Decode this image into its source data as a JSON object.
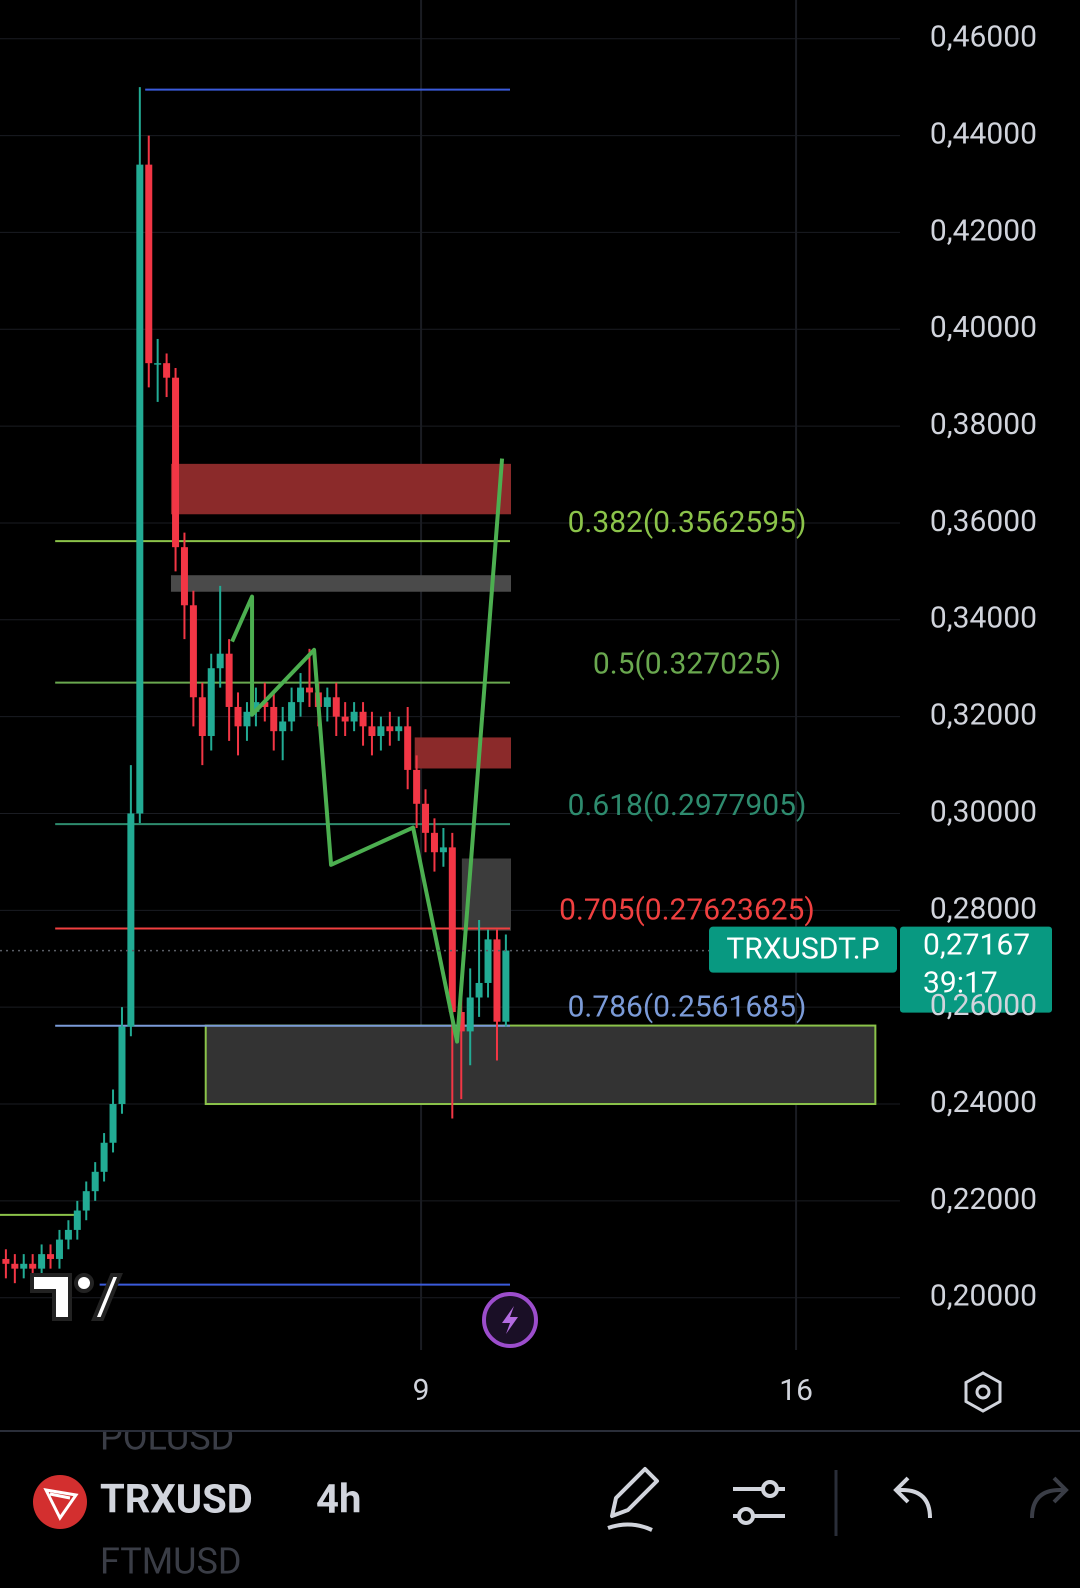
{
  "chart_data": {
    "type": "candlestick",
    "x": [
      1.25,
      1.417,
      1.583,
      1.75,
      1.917,
      2.083,
      2.25,
      2.417,
      2.583,
      2.75,
      2.917,
      3.083,
      3.25,
      3.417,
      3.583,
      3.75,
      3.917,
      4.083,
      4.25,
      4.417,
      4.583,
      4.75,
      4.917,
      5.083,
      5.25,
      5.417,
      5.583,
      5.75,
      5.917,
      6.083,
      6.25,
      6.417,
      6.583,
      6.75,
      6.917,
      7.083,
      7.25,
      7.417,
      7.583,
      7.75,
      7.917,
      8.083,
      8.25,
      8.417,
      8.583,
      8.75,
      8.917,
      9.083,
      9.25,
      9.417,
      9.583,
      9.75,
      9.917,
      10.083,
      10.25,
      10.417,
      10.583
    ],
    "open": [
      0.208,
      0.207,
      0.206,
      0.207,
      0.206,
      0.209,
      0.208,
      0.212,
      0.214,
      0.218,
      0.222,
      0.226,
      0.232,
      0.24,
      0.256,
      0.3,
      0.434,
      0.393,
      0.393,
      0.39,
      0.355,
      0.343,
      0.324,
      0.316,
      0.33,
      0.333,
      0.322,
      0.318,
      0.321,
      0.323,
      0.322,
      0.317,
      0.319,
      0.323,
      0.326,
      0.325,
      0.322,
      0.324,
      0.32,
      0.319,
      0.321,
      0.318,
      0.316,
      0.318,
      0.317,
      0.318,
      0.309,
      0.302,
      0.296,
      0.292,
      0.293,
      0.259,
      0.255,
      0.262,
      0.265,
      0.274,
      0.257
    ],
    "high": [
      0.21,
      0.209,
      0.209,
      0.209,
      0.211,
      0.211,
      0.214,
      0.216,
      0.22,
      0.224,
      0.228,
      0.234,
      0.243,
      0.26,
      0.31,
      0.45,
      0.44,
      0.398,
      0.395,
      0.392,
      0.358,
      0.346,
      0.327,
      0.333,
      0.347,
      0.336,
      0.325,
      0.323,
      0.326,
      0.327,
      0.325,
      0.322,
      0.326,
      0.329,
      0.334,
      0.327,
      0.326,
      0.327,
      0.323,
      0.323,
      0.323,
      0.321,
      0.32,
      0.321,
      0.32,
      0.322,
      0.312,
      0.305,
      0.299,
      0.297,
      0.296,
      0.262,
      0.268,
      0.278,
      0.276,
      0.276,
      0.275
    ],
    "low": [
      0.204,
      0.203,
      0.204,
      0.203,
      0.204,
      0.206,
      0.206,
      0.21,
      0.212,
      0.216,
      0.22,
      0.224,
      0.23,
      0.238,
      0.254,
      0.298,
      0.388,
      0.385,
      0.386,
      0.35,
      0.336,
      0.318,
      0.31,
      0.313,
      0.326,
      0.315,
      0.312,
      0.315,
      0.318,
      0.319,
      0.313,
      0.311,
      0.317,
      0.32,
      0.322,
      0.318,
      0.319,
      0.316,
      0.316,
      0.317,
      0.314,
      0.312,
      0.313,
      0.314,
      0.315,
      0.305,
      0.297,
      0.292,
      0.288,
      0.289,
      0.237,
      0.241,
      0.248,
      0.258,
      0.262,
      0.249,
      0.256
    ],
    "close": [
      0.207,
      0.206,
      0.207,
      0.206,
      0.209,
      0.208,
      0.212,
      0.214,
      0.218,
      0.222,
      0.226,
      0.232,
      0.24,
      0.256,
      0.3,
      0.434,
      0.393,
      0.393,
      0.39,
      0.355,
      0.343,
      0.324,
      0.316,
      0.33,
      0.333,
      0.322,
      0.318,
      0.321,
      0.323,
      0.322,
      0.317,
      0.319,
      0.323,
      0.326,
      0.325,
      0.322,
      0.324,
      0.32,
      0.319,
      0.321,
      0.318,
      0.316,
      0.318,
      0.317,
      0.318,
      0.309,
      0.302,
      0.296,
      0.292,
      0.293,
      0.259,
      0.255,
      0.262,
      0.265,
      0.274,
      0.257,
      0.2717
    ],
    "up_color": "#22ab94",
    "down_color": "#f23645",
    "xlim": [
      1.14,
      17.94
    ],
    "xticks": [
      9,
      16
    ],
    "ylim": [
      0.1892,
      0.468
    ],
    "yticks": [
      {
        "value": 0.46,
        "label": "0,46000"
      },
      {
        "value": 0.44,
        "label": "0,44000"
      },
      {
        "value": 0.42,
        "label": "0,42000"
      },
      {
        "value": 0.4,
        "label": "0,40000"
      },
      {
        "value": 0.38,
        "label": "0,38000"
      },
      {
        "value": 0.36,
        "label": "0,36000"
      },
      {
        "value": 0.34,
        "label": "0,34000"
      },
      {
        "value": 0.32,
        "label": "0,32000"
      },
      {
        "value": 0.3,
        "label": "0,30000"
      },
      {
        "value": 0.28,
        "label": "0,28000"
      },
      {
        "value": 0.26,
        "label": "0,26000"
      },
      {
        "value": 0.24,
        "label": "0,24000"
      },
      {
        "value": 0.22,
        "label": "0,22000"
      },
      {
        "value": 0.2,
        "label": "0,20000"
      }
    ],
    "grid": true,
    "fib_levels": [
      {
        "label": "0.382(0.3562595)",
        "value": 0.3562595,
        "color": "#8bc34a"
      },
      {
        "label": "0.5(0.327025)",
        "value": 0.327025,
        "color": "#6aa84f"
      },
      {
        "label": "0.618(0.2977905)",
        "value": 0.2977905,
        "color": "#2e8b6e"
      },
      {
        "label": "0.705(0.27623625)",
        "value": 0.27623625,
        "color": "#f04040"
      },
      {
        "label": "0.786(0.2561685)",
        "value": 0.2561685,
        "color": "#7b9bd8"
      }
    ],
    "fib_from": 2.17,
    "fib_to": 10.66,
    "zones": [
      {
        "from": 4.35,
        "to": 10.66,
        "low": 0.362,
        "high": 0.372,
        "color": "#8b2a2a",
        "border": "#8b2a2a"
      },
      {
        "from": 4.35,
        "to": 10.66,
        "low": 0.346,
        "high": 0.349,
        "color": "#4a4a4a",
        "border": "#4a4a4a"
      },
      {
        "from": 8.9,
        "to": 10.66,
        "low": 0.3095,
        "high": 0.3155,
        "color": "#8b2a2a",
        "border": "#8b2a2a"
      },
      {
        "from": 9.78,
        "to": 10.66,
        "low": 0.276,
        "high": 0.2905,
        "color": "#3c3c3c",
        "border": "#3c3c3c"
      },
      {
        "from": 4.98,
        "to": 17.48,
        "low": 0.24,
        "high": 0.2562,
        "color": "#333333",
        "border": "#8bc34a"
      }
    ],
    "hlines": [
      {
        "from": 3.85,
        "to": 10.66,
        "value": 0.4495,
        "color": "#3b5bdb"
      },
      {
        "from": 3.0,
        "to": 10.66,
        "value": 0.2027,
        "color": "#3b5bdb"
      },
      {
        "from": 1.14,
        "to": 2.6,
        "value": 0.2171,
        "color": "#8bc34a"
      }
    ],
    "path": {
      "x": [
        5.472,
        5.845,
        5.845,
        7.003,
        7.32,
        8.851,
        9.672,
        10.512
      ],
      "y": [
        0.3355,
        0.3448,
        0.3204,
        0.3338,
        0.2894,
        0.2971,
        0.2529,
        0.3733
      ],
      "color": "#4caf50"
    },
    "symbol_label": "TRXUSDT.P",
    "last_price": {
      "value": 0.27167,
      "label": "0,27167"
    },
    "countdown": "39:17"
  },
  "toolbar": {
    "prev_symbol": "POLUSD",
    "symbol": "TRXUSD",
    "interval": "4h",
    "next_symbol": "FTMUSD"
  }
}
